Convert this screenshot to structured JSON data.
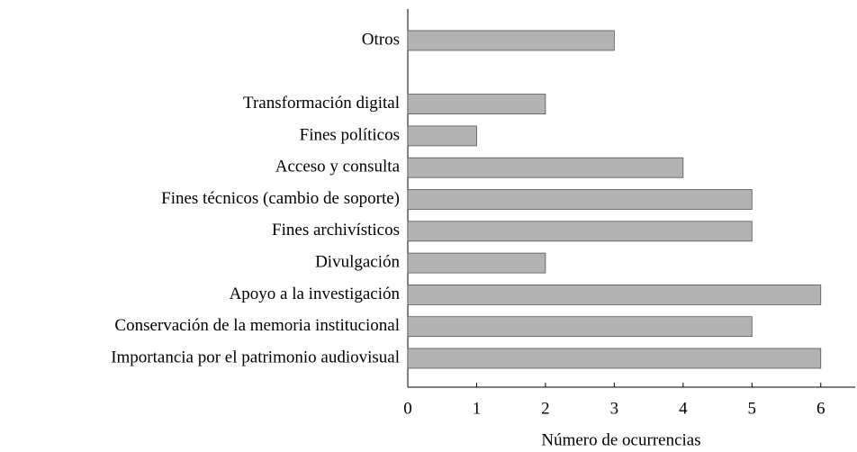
{
  "chart_data": {
    "type": "barh",
    "xlabel": "Número de ocurrencias",
    "categories": [
      "Otros",
      null,
      "Transformación digital",
      "Fines políticos",
      "Acceso y consulta",
      "Fines técnicos (cambio de soporte)",
      "Fines archivísticos",
      "Divulgación",
      "Apoyo a la investigación",
      "Conservación de la memoria institucional",
      "Importancia por el patrimonio audiovisual"
    ],
    "values": [
      3,
      null,
      2,
      1,
      4,
      5,
      5,
      2,
      6,
      5,
      6
    ],
    "color": "#b3b3b3",
    "xlim": [
      0,
      6.5
    ],
    "xticks": [
      0,
      1,
      2,
      3,
      4,
      5,
      6
    ]
  }
}
